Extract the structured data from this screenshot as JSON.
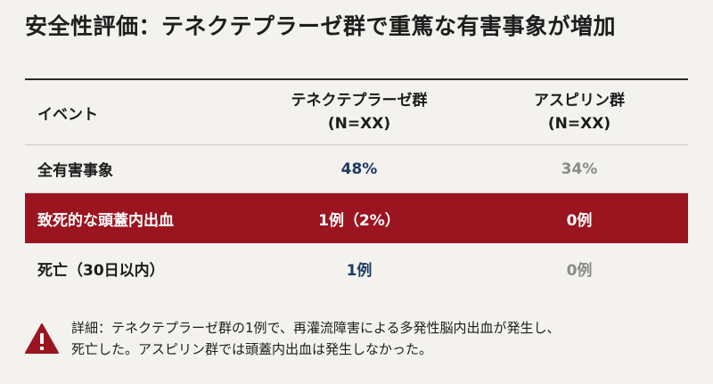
{
  "title": "安全性評価：テネクテプラーゼ群で重篤な有害事象が増加",
  "table": {
    "headers": {
      "event": "イベント",
      "group_a_line1": "テネクテプラーゼ群",
      "group_a_line2": "(N=XX)",
      "group_b_line1": "アスピリン群",
      "group_b_line2": "(N=XX)"
    },
    "rows": [
      {
        "event": "全有害事象",
        "a": "48%",
        "b": "34%"
      },
      {
        "event": "致死的な頭蓋内出血",
        "a": "1例（2%）",
        "b": "0例"
      },
      {
        "event": "死亡（30日以内）",
        "a": "1例",
        "b": "0例"
      }
    ]
  },
  "note": {
    "line1": "詳細：テネクテプラーゼ群の1例で、再灌流障害による多発性脳内出血が発生し、",
    "line2": "死亡した。アスピリン群では頭蓋内出血は発生しなかった。",
    "icon": "warning-icon"
  },
  "colors": {
    "highlight_row": "#9a1520",
    "accent_text": "#1f3a63",
    "muted_text": "#8a8a8a",
    "warning": "#9a1520"
  }
}
